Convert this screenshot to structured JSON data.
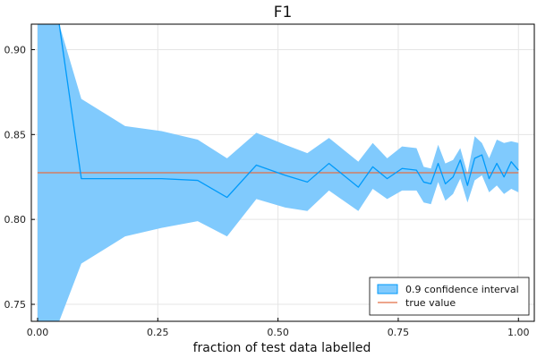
{
  "chart_data": {
    "type": "line",
    "title": "F1",
    "xlabel": "fraction of test data labelled",
    "ylabel": "",
    "xlim": [
      -0.013,
      1.033
    ],
    "ylim": [
      0.74,
      0.915
    ],
    "xticks": [
      0.0,
      0.25,
      0.5,
      0.75,
      1.0
    ],
    "xtick_labels": [
      "0.00",
      "0.25",
      "0.50",
      "0.75",
      "1.00"
    ],
    "yticks": [
      0.75,
      0.8,
      0.85,
      0.9
    ],
    "ytick_labels": [
      "0.75",
      "0.80",
      "0.85",
      "0.90"
    ],
    "grid": true,
    "legend_position": "bottom-right",
    "colors": {
      "estimate": "#009AFA",
      "band": "#80CAFD",
      "true_value": "#E26F46",
      "axis": "#000000",
      "grid": "#E5E5E5"
    },
    "series": [
      {
        "name": "0.9 confidence interval",
        "kind": "band",
        "x": [
          0.0,
          0.045,
          0.091,
          0.182,
          0.258,
          0.333,
          0.394,
          0.455,
          0.515,
          0.561,
          0.606,
          0.667,
          0.697,
          0.727,
          0.758,
          0.788,
          0.803,
          0.818,
          0.833,
          0.848,
          0.864,
          0.879,
          0.894,
          0.909,
          0.924,
          0.939,
          0.955,
          0.97,
          0.985,
          1.0
        ],
        "upper": [
          0.915,
          0.915,
          0.871,
          0.855,
          0.852,
          0.847,
          0.836,
          0.851,
          0.844,
          0.839,
          0.848,
          0.834,
          0.845,
          0.836,
          0.843,
          0.842,
          0.831,
          0.83,
          0.844,
          0.833,
          0.835,
          0.842,
          0.827,
          0.849,
          0.845,
          0.836,
          0.847,
          0.845,
          0.846,
          0.845
        ],
        "lower": [
          0.74,
          0.74,
          0.774,
          0.79,
          0.795,
          0.799,
          0.79,
          0.812,
          0.807,
          0.805,
          0.817,
          0.805,
          0.818,
          0.812,
          0.817,
          0.817,
          0.81,
          0.809,
          0.822,
          0.811,
          0.815,
          0.824,
          0.81,
          0.823,
          0.826,
          0.816,
          0.82,
          0.815,
          0.818,
          0.816
        ]
      },
      {
        "name": "",
        "kind": "line",
        "x": [
          0.045,
          0.091,
          0.182,
          0.258,
          0.333,
          0.394,
          0.455,
          0.515,
          0.561,
          0.606,
          0.667,
          0.697,
          0.727,
          0.758,
          0.788,
          0.803,
          0.818,
          0.833,
          0.848,
          0.864,
          0.879,
          0.894,
          0.909,
          0.924,
          0.939,
          0.955,
          0.97,
          0.985,
          1.0
        ],
        "y": [
          0.99,
          0.824,
          0.824,
          0.824,
          0.823,
          0.813,
          0.832,
          0.826,
          0.822,
          0.833,
          0.819,
          0.831,
          0.824,
          0.83,
          0.829,
          0.822,
          0.821,
          0.833,
          0.821,
          0.825,
          0.835,
          0.82,
          0.836,
          0.838,
          0.824,
          0.833,
          0.825,
          0.834,
          0.829
        ]
      },
      {
        "name": "true value",
        "kind": "hline",
        "y": 0.8275
      }
    ]
  }
}
